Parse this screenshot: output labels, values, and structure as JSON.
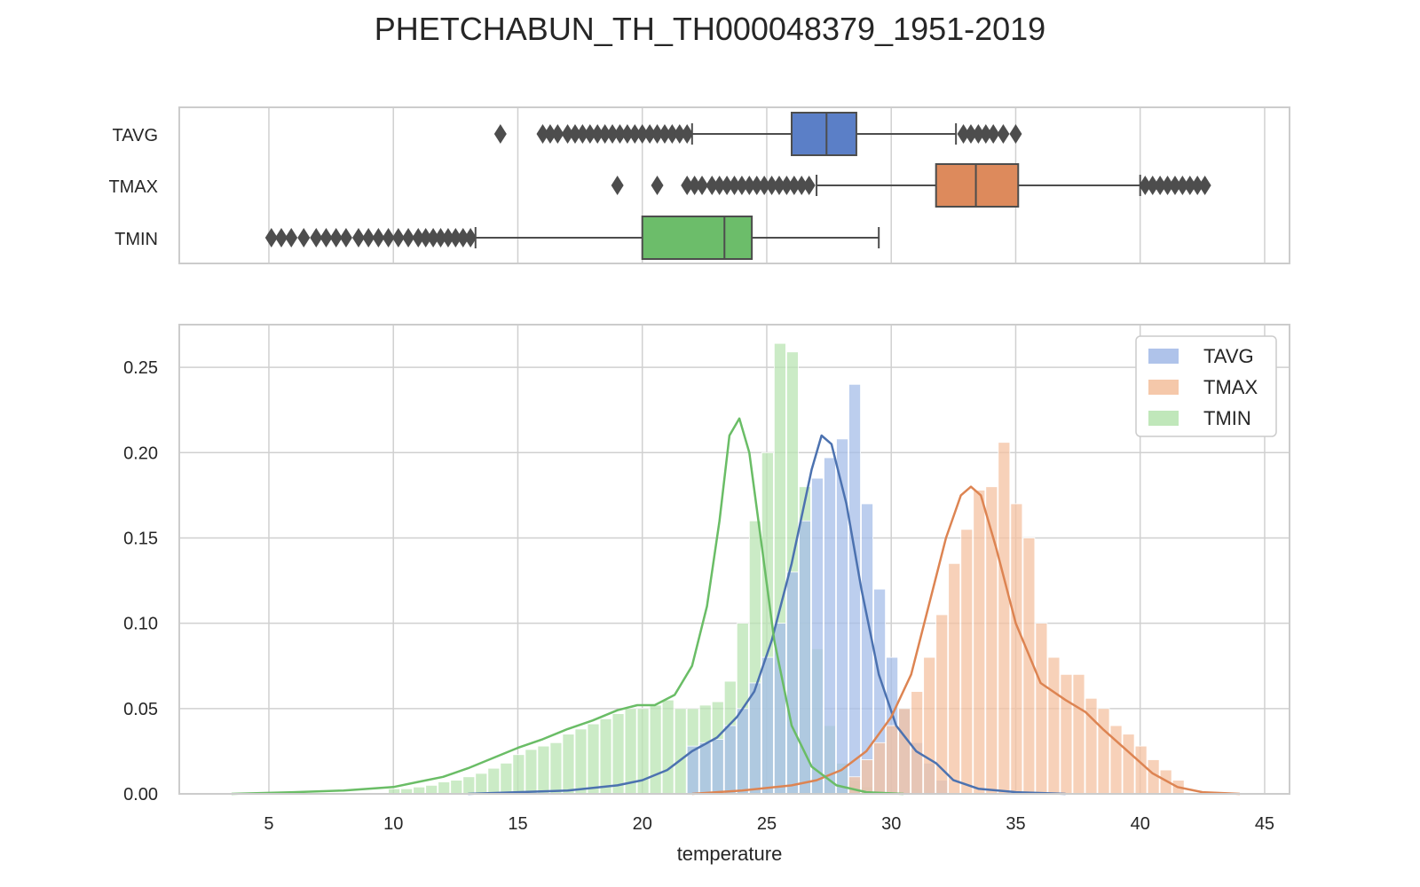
{
  "chart_data": [
    {
      "type": "box",
      "title": "PHETCHABUN_TH_TH000048379_1951-2019",
      "xlabel": "",
      "ylabel": "",
      "xlim": [
        1.4,
        46
      ],
      "grid": true,
      "categories": [
        "TAVG",
        "TMAX",
        "TMIN"
      ],
      "colors": [
        "#5b7fc7",
        "#dd8a5c",
        "#6cbd6a"
      ],
      "boxes": [
        {
          "name": "TAVG",
          "whisker_low": 22.0,
          "q1": 26.0,
          "median": 27.4,
          "q3": 28.6,
          "whisker_high": 32.6,
          "outliers_low": [
            14.3,
            16.0,
            16.3,
            16.6,
            17.0,
            17.3,
            17.6,
            17.9,
            18.2,
            18.5,
            18.8,
            19.1,
            19.4,
            19.7,
            20.0,
            20.3,
            20.6,
            20.9,
            21.2,
            21.5,
            21.8
          ],
          "outliers_high": [
            32.9,
            33.2,
            33.5,
            33.8,
            34.1,
            34.5,
            35.0
          ]
        },
        {
          "name": "TMAX",
          "whisker_low": 27.0,
          "q1": 31.8,
          "median": 33.4,
          "q3": 35.1,
          "whisker_high": 40.0,
          "outliers_low": [
            19.0,
            20.6,
            21.8,
            22.1,
            22.4,
            22.8,
            23.1,
            23.4,
            23.7,
            24.0,
            24.3,
            24.6,
            24.9,
            25.2,
            25.5,
            25.8,
            26.1,
            26.4,
            26.7
          ],
          "outliers_high": [
            40.2,
            40.5,
            40.8,
            41.1,
            41.4,
            41.7,
            42.0,
            42.3,
            42.6
          ]
        },
        {
          "name": "TMIN",
          "whisker_low": 13.3,
          "q1": 20.0,
          "median": 23.3,
          "q3": 24.4,
          "whisker_high": 29.5,
          "outliers_low": [
            5.1,
            5.5,
            5.9,
            6.4,
            6.9,
            7.3,
            7.7,
            8.1,
            8.6,
            9.0,
            9.4,
            9.8,
            10.2,
            10.6,
            11.0,
            11.3,
            11.6,
            11.9,
            12.2,
            12.5,
            12.8,
            13.1
          ],
          "outliers_high": []
        }
      ]
    },
    {
      "type": "bar",
      "subtype": "histogram-with-kde",
      "xlabel": "temperature",
      "ylabel": "",
      "xlim": [
        1.4,
        46
      ],
      "ylim": [
        0,
        0.275
      ],
      "grid": true,
      "legend": "top-right",
      "x_ticks": [
        5,
        10,
        15,
        20,
        25,
        30,
        35,
        40,
        45
      ],
      "y_ticks": [
        "0.00",
        "0.05",
        "0.10",
        "0.15",
        "0.20",
        "0.25"
      ],
      "series": [
        {
          "name": "TAVG",
          "color": "#4c72b0",
          "fill": "#a6bde8",
          "bin_edges_start": 21.8,
          "bin_width": 0.5,
          "hist": [
            0.028,
            0.03,
            0.032,
            0.04,
            0.05,
            0.065,
            0.08,
            0.1,
            0.13,
            0.16,
            0.185,
            0.197,
            0.208,
            0.24,
            0.17,
            0.12,
            0.08,
            0.05,
            0.03,
            0.018,
            0.008
          ],
          "kde_x": [
            13,
            15,
            17,
            19,
            20,
            21,
            22,
            23,
            23.8,
            24.5,
            25.2,
            26,
            26.8,
            27.2,
            27.6,
            28.2,
            28.8,
            29.5,
            30.2,
            31,
            31.8,
            32.5,
            33.5,
            35,
            37
          ],
          "kde_y": [
            0,
            0.001,
            0.002,
            0.005,
            0.008,
            0.014,
            0.025,
            0.033,
            0.045,
            0.06,
            0.09,
            0.135,
            0.19,
            0.21,
            0.205,
            0.17,
            0.12,
            0.07,
            0.04,
            0.025,
            0.018,
            0.008,
            0.003,
            0.001,
            0
          ]
        },
        {
          "name": "TMAX",
          "color": "#dd8452",
          "fill": "#f4c2a1",
          "bin_edges_start": 28.3,
          "bin_width": 0.5,
          "hist": [
            0.01,
            0.02,
            0.03,
            0.04,
            0.05,
            0.06,
            0.08,
            0.105,
            0.135,
            0.155,
            0.178,
            0.18,
            0.206,
            0.17,
            0.15,
            0.1,
            0.08,
            0.07,
            0.07,
            0.056,
            0.05,
            0.04,
            0.035,
            0.028,
            0.02,
            0.014,
            0.008
          ],
          "kde_x": [
            22,
            24,
            26,
            27,
            28,
            29,
            30,
            30.8,
            31.5,
            32.2,
            32.8,
            33.2,
            33.6,
            34.2,
            35,
            36,
            37,
            37.8,
            38.5,
            39.5,
            40.5,
            41.5,
            42.5,
            44
          ],
          "kde_y": [
            0,
            0.002,
            0.005,
            0.008,
            0.014,
            0.025,
            0.045,
            0.07,
            0.11,
            0.15,
            0.175,
            0.18,
            0.175,
            0.145,
            0.1,
            0.065,
            0.055,
            0.048,
            0.038,
            0.025,
            0.012,
            0.004,
            0.001,
            0
          ]
        },
        {
          "name": "TMIN",
          "color": "#6abd66",
          "fill": "#b9e4b3",
          "bin_edges_start": 9.8,
          "bin_width": 0.5,
          "hist": [
            0.003,
            0.003,
            0.004,
            0.005,
            0.007,
            0.008,
            0.01,
            0.012,
            0.015,
            0.018,
            0.023,
            0.026,
            0.028,
            0.03,
            0.035,
            0.038,
            0.041,
            0.044,
            0.047,
            0.05,
            0.05,
            0.052,
            0.055,
            0.05,
            0.05,
            0.052,
            0.054,
            0.066,
            0.1,
            0.16,
            0.2,
            0.264,
            0.259,
            0.18,
            0.085,
            0.04,
            0.018,
            0.008,
            0.004
          ],
          "kde_x": [
            3.5,
            6,
            8,
            10,
            11,
            12,
            13,
            14,
            15,
            16,
            17,
            18,
            19,
            19.8,
            20.5,
            21.3,
            22,
            22.6,
            23.1,
            23.5,
            23.9,
            24.3,
            24.8,
            25.3,
            26,
            26.8,
            27.8,
            29,
            30.5
          ],
          "kde_y": [
            0,
            0.001,
            0.002,
            0.004,
            0.007,
            0.01,
            0.015,
            0.021,
            0.027,
            0.032,
            0.038,
            0.043,
            0.049,
            0.052,
            0.052,
            0.058,
            0.075,
            0.11,
            0.16,
            0.21,
            0.22,
            0.2,
            0.145,
            0.09,
            0.04,
            0.016,
            0.005,
            0.001,
            0
          ]
        }
      ]
    }
  ]
}
